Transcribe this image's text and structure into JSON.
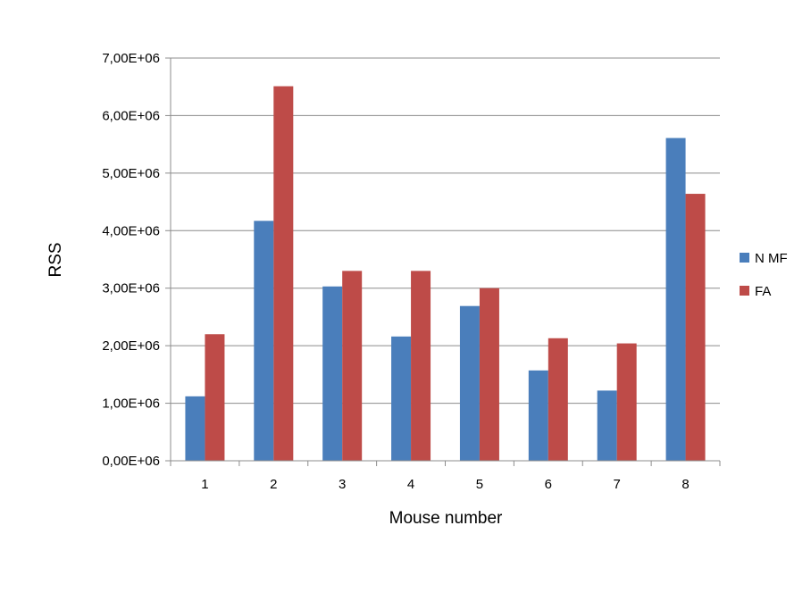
{
  "chart_data": {
    "type": "bar",
    "title": "",
    "xlabel": "Mouse number",
    "ylabel": "RSS",
    "categories": [
      "1",
      "2",
      "3",
      "4",
      "5",
      "6",
      "7",
      "8"
    ],
    "series": [
      {
        "name": "N MF",
        "color": "#4a7ebb",
        "values": [
          1120000,
          4170000,
          3030000,
          2160000,
          2690000,
          1570000,
          1220000,
          5610000
        ]
      },
      {
        "name": "FA",
        "color": "#be4b48",
        "values": [
          2200000,
          6510000,
          3300000,
          3300000,
          3000000,
          2130000,
          2040000,
          4640000
        ]
      }
    ],
    "ylim": [
      0,
      7000000
    ],
    "yticks": [
      0,
      1000000,
      2000000,
      3000000,
      4000000,
      5000000,
      6000000,
      7000000
    ],
    "ytick_labels": [
      "0,00E+06",
      "1,00E+06",
      "2,00E+06",
      "3,00E+06",
      "4,00E+06",
      "5,00E+06",
      "6,00E+06",
      "7,00E+06"
    ],
    "grid": true,
    "legend_position": "right"
  }
}
